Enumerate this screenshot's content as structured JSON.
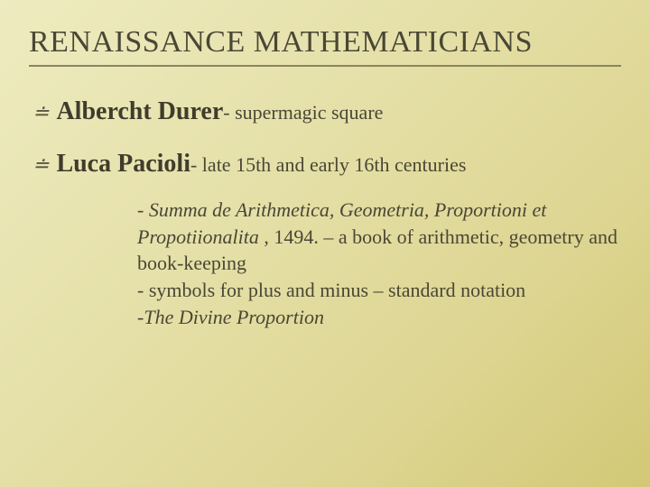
{
  "background": {
    "gradient_stops": [
      "#eeebc0",
      "#e5e0a8",
      "#dcd48f",
      "#d2c876"
    ],
    "angle_deg": 135
  },
  "title": {
    "text": "RENAISSANCE MATHEMATICIANS",
    "font_size_pt": 34,
    "color": "#4a4735",
    "underline_color": "#8a8560"
  },
  "bullets": [
    {
      "name": "Albercht Durer",
      "desc": "- supermagic square",
      "name_font_size_pt": 28,
      "desc_font_size_pt": 22,
      "bullet_glyph": "≐"
    },
    {
      "name": "Luca Pacioli",
      "desc": "- late 15th and early 16th centuries",
      "name_font_size_pt": 28,
      "desc_font_size_pt": 22,
      "bullet_glyph": "≐",
      "sub": [
        {
          "prefix": "- ",
          "italic": "Summa de Arithmetica, Geometria, Proportioni et Propotiionalita",
          "rest": " , 1494. – a book of arithmetic, geometry and book-keeping"
        },
        {
          "prefix": "- ",
          "italic": "",
          "rest": "symbols for plus and minus – standard notation"
        },
        {
          "prefix": "-",
          "italic": "The Divine Proportion",
          "rest": ""
        }
      ]
    }
  ],
  "typography": {
    "font_family": "Georgia, serif",
    "body_color": "#4a4735",
    "name_color": "#3f3c2c"
  }
}
